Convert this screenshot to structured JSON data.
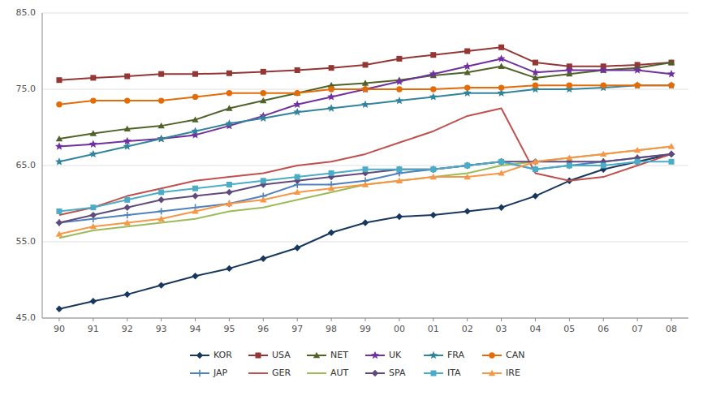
{
  "chart_data": {
    "type": "line",
    "categories": [
      "90",
      "91",
      "92",
      "93",
      "94",
      "95",
      "96",
      "97",
      "98",
      "99",
      "00",
      "01",
      "02",
      "03",
      "04",
      "05",
      "06",
      "07",
      "08"
    ],
    "series": [
      {
        "name": "KOR",
        "color": "#17375e",
        "marker": "diamond",
        "values": [
          46.2,
          47.2,
          48.1,
          49.3,
          50.5,
          51.5,
          52.8,
          54.2,
          56.2,
          57.5,
          58.3,
          58.5,
          59.0,
          59.5,
          61.0,
          63.0,
          64.5,
          65.5,
          66.5
        ]
      },
      {
        "name": "USA",
        "color": "#943634",
        "marker": "square",
        "values": [
          76.2,
          76.5,
          76.7,
          77.0,
          77.0,
          77.1,
          77.3,
          77.5,
          77.8,
          78.2,
          79.0,
          79.5,
          80.0,
          80.5,
          78.5,
          78.0,
          78.0,
          78.2,
          78.5
        ]
      },
      {
        "name": "NET",
        "color": "#4f6228",
        "marker": "triangle",
        "values": [
          68.5,
          69.2,
          69.8,
          70.2,
          71.0,
          72.5,
          73.5,
          74.5,
          75.5,
          75.8,
          76.2,
          76.8,
          77.2,
          78.0,
          76.5,
          77.0,
          77.5,
          77.8,
          78.5
        ]
      },
      {
        "name": "UK",
        "color": "#7030a0",
        "marker": "star",
        "values": [
          67.5,
          67.8,
          68.2,
          68.5,
          69.0,
          70.2,
          71.5,
          73.0,
          74.0,
          75.0,
          76.0,
          77.0,
          78.0,
          79.0,
          77.2,
          77.5,
          77.5,
          77.5,
          77.0
        ]
      },
      {
        "name": "FRA",
        "color": "#31849b",
        "marker": "star",
        "values": [
          65.5,
          66.5,
          67.5,
          68.5,
          69.5,
          70.5,
          71.2,
          72.0,
          72.5,
          73.0,
          73.5,
          74.0,
          74.5,
          74.5,
          75.0,
          75.0,
          75.2,
          75.5,
          75.5
        ]
      },
      {
        "name": "CAN",
        "color": "#e36c09",
        "marker": "circle",
        "values": [
          73.0,
          73.5,
          73.5,
          73.5,
          74.0,
          74.5,
          74.5,
          74.5,
          75.0,
          75.0,
          75.0,
          75.0,
          75.2,
          75.2,
          75.5,
          75.5,
          75.5,
          75.5,
          75.5
        ]
      },
      {
        "name": "JAP",
        "color": "#4f81bd",
        "marker": "plus",
        "values": [
          57.5,
          58.0,
          58.5,
          59.0,
          59.5,
          60.0,
          61.0,
          62.5,
          62.5,
          63.0,
          64.0,
          64.5,
          65.0,
          65.5,
          64.5,
          65.0,
          65.5,
          66.0,
          66.5
        ]
      },
      {
        "name": "GER",
        "color": "#c0504d",
        "marker": "none",
        "values": [
          58.5,
          59.5,
          61.0,
          62.0,
          63.0,
          63.5,
          64.0,
          65.0,
          65.5,
          66.5,
          68.0,
          69.5,
          71.5,
          72.5,
          64.0,
          63.0,
          63.5,
          65.0,
          66.5
        ]
      },
      {
        "name": "AUT",
        "color": "#9bbb59",
        "marker": "none",
        "values": [
          55.5,
          56.5,
          57.0,
          57.5,
          58.0,
          59.0,
          59.5,
          60.5,
          61.5,
          62.5,
          63.0,
          63.5,
          64.0,
          65.0,
          65.5,
          66.0,
          66.5,
          67.0,
          67.5
        ]
      },
      {
        "name": "SPA",
        "color": "#604a7b",
        "marker": "diamond",
        "values": [
          57.5,
          58.5,
          59.5,
          60.5,
          61.0,
          61.5,
          62.5,
          63.0,
          63.5,
          64.0,
          64.5,
          64.5,
          65.0,
          65.5,
          65.5,
          65.5,
          65.5,
          66.0,
          66.5
        ]
      },
      {
        "name": "ITA",
        "color": "#4bacc6",
        "marker": "square",
        "values": [
          59.0,
          59.5,
          60.5,
          61.5,
          62.0,
          62.5,
          63.0,
          63.5,
          64.0,
          64.5,
          64.5,
          64.5,
          65.0,
          65.5,
          64.5,
          65.0,
          65.0,
          65.5,
          65.5
        ]
      },
      {
        "name": "IRE",
        "color": "#f79646",
        "marker": "triangle",
        "values": [
          56.0,
          57.0,
          57.5,
          58.0,
          59.0,
          60.0,
          60.5,
          61.5,
          62.0,
          62.5,
          63.0,
          63.5,
          63.5,
          64.0,
          65.5,
          66.0,
          66.5,
          67.0,
          67.5
        ]
      }
    ],
    "ylim": [
      45.0,
      85.0
    ],
    "yticks": [
      {
        "value": 45,
        "label": "45.0"
      },
      {
        "value": 55,
        "label": "55.0"
      },
      {
        "value": 65,
        "label": "65.0"
      },
      {
        "value": 75,
        "label": "75.0"
      },
      {
        "value": 85,
        "label": "85.0"
      }
    ],
    "grid": true,
    "legend": "bottom"
  }
}
